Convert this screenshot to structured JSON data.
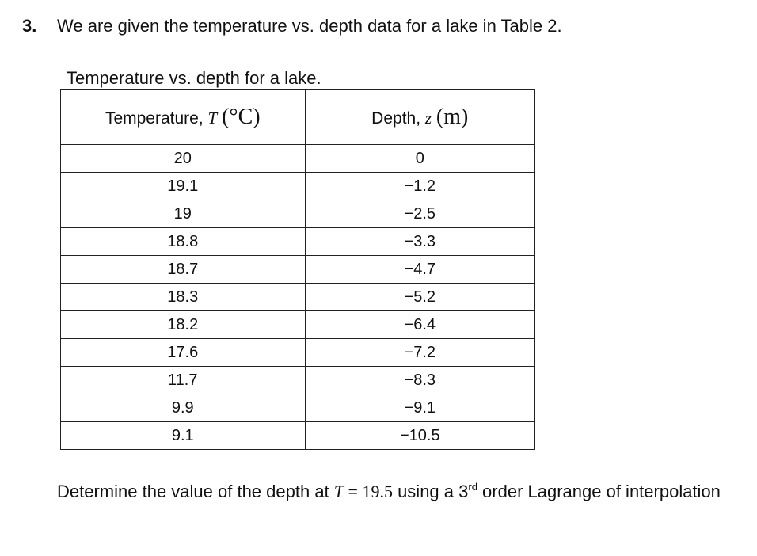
{
  "question": {
    "number": "3.",
    "text": "We are given the temperature vs. depth data for a lake in Table 2."
  },
  "table": {
    "caption": "Temperature vs. depth for a lake.",
    "header": {
      "temperature_label": "Temperature,",
      "temperature_symbol": "T",
      "temperature_unit": "(°C)",
      "depth_label": "Depth,",
      "depth_symbol": "z",
      "depth_unit": "(m)"
    },
    "rows": [
      {
        "T": "20",
        "z": "0"
      },
      {
        "T": "19.1",
        "z": "−1.2"
      },
      {
        "T": "19",
        "z": "−2.5"
      },
      {
        "T": "18.8",
        "z": "−3.3"
      },
      {
        "T": "18.7",
        "z": "−4.7"
      },
      {
        "T": "18.3",
        "z": "−5.2"
      },
      {
        "T": "18.2",
        "z": "−6.4"
      },
      {
        "T": "17.6",
        "z": "−7.2"
      },
      {
        "T": "11.7",
        "z": "−8.3"
      },
      {
        "T": "9.9",
        "z": "−9.1"
      },
      {
        "T": "9.1",
        "z": "−10.5"
      }
    ]
  },
  "task": {
    "prefix": "Determine the value of the depth at ",
    "symbol": "T",
    "equals": " = ",
    "value": "19.5",
    "middle": " using a 3",
    "superscript": "rd",
    "suffix": " order  Lagrange of interpolation"
  }
}
